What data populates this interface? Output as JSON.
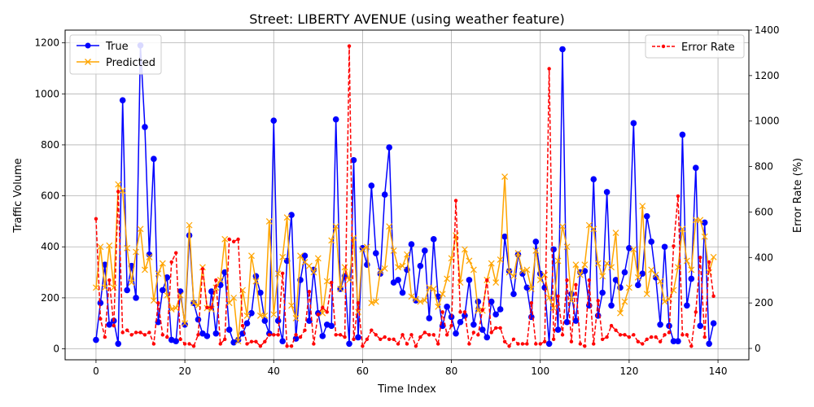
{
  "chart_data": {
    "type": "line",
    "title": "Street: LIBERTY AVENUE (using weather feature)",
    "xlabel": "Time Index",
    "ylabel_left": "Traffic Volume",
    "ylabel_right": "Error Rate (%)",
    "xlim": [
      -6.95,
      146.95
    ],
    "ylim_left": [
      -43,
      1250
    ],
    "ylim_right": [
      -50,
      1400
    ],
    "xticks": [
      0,
      20,
      40,
      60,
      80,
      100,
      120,
      140
    ],
    "yticks_left": [
      0,
      200,
      400,
      600,
      800,
      1000,
      1200
    ],
    "yticks_right": [
      0,
      200,
      400,
      600,
      800,
      1000,
      1200,
      1400
    ],
    "grid": true,
    "legend_left_placement": "upper-left",
    "legend_right_placement": "upper-right",
    "series": [
      {
        "name": "True",
        "axis": "left",
        "color": "#0000ff",
        "marker": "circle",
        "style": "solid",
        "values": [
          35,
          180,
          330,
          95,
          110,
          20,
          975,
          230,
          325,
          200,
          1190,
          870,
          370,
          745,
          105,
          230,
          280,
          35,
          30,
          225,
          95,
          445,
          180,
          115,
          60,
          50,
          225,
          60,
          250,
          300,
          75,
          25,
          35,
          60,
          100,
          140,
          285,
          220,
          110,
          60,
          895,
          110,
          30,
          345,
          525,
          40,
          270,
          365,
          110,
          310,
          140,
          50,
          95,
          90,
          900,
          235,
          285,
          20,
          740,
          45,
          395,
          330,
          640,
          375,
          295,
          605,
          790,
          260,
          270,
          220,
          310,
          410,
          190,
          325,
          385,
          120,
          430,
          205,
          90,
          165,
          125,
          60,
          105,
          130,
          270,
          95,
          185,
          75,
          45,
          185,
          135,
          155,
          440,
          305,
          215,
          370,
          295,
          240,
          125,
          420,
          295,
          240,
          20,
          390,
          75,
          1175,
          105,
          215,
          110,
          300,
          305,
          170,
          665,
          130,
          220,
          615,
          170,
          270,
          240,
          300,
          395,
          885,
          250,
          295,
          520,
          420,
          280,
          95,
          400,
          90,
          30,
          30,
          840,
          170,
          275,
          710,
          90,
          495,
          20,
          100
        ]
      },
      {
        "name": "Predicted",
        "axis": "left",
        "color": "#ffa500",
        "marker": "x",
        "style": "solid",
        "values": [
          240,
          400,
          240,
          405,
          240,
          645,
          620,
          395,
          260,
          380,
          470,
          310,
          360,
          190,
          295,
          335,
          210,
          155,
          160,
          210,
          100,
          485,
          180,
          170,
          320,
          160,
          155,
          240,
          270,
          430,
          180,
          200,
          30,
          230,
          130,
          365,
          265,
          130,
          130,
          500,
          135,
          295,
          360,
          515,
          170,
          120,
          365,
          340,
          325,
          300,
          355,
          140,
          265,
          425,
          480,
          235,
          320,
          270,
          435,
          145,
          390,
          400,
          180,
          185,
          305,
          315,
          480,
          385,
          320,
          325,
          370,
          205,
          195,
          185,
          190,
          240,
          235,
          165,
          215,
          275,
          355,
          445,
          260,
          390,
          345,
          310,
          150,
          150,
          270,
          335,
          260,
          350,
          675,
          300,
          285,
          375,
          305,
          310,
          235,
          385,
          270,
          290,
          200,
          160,
          345,
          480,
          400,
          190,
          330,
          290,
          330,
          485,
          470,
          335,
          285,
          335,
          320,
          455,
          140,
          185,
          240,
          390,
          280,
          560,
          215,
          310,
          290,
          265,
          185,
          195,
          230,
          320,
          470,
          345,
          310,
          505,
          505,
          440,
          300,
          360
        ]
      },
      {
        "name": "Error Rate",
        "axis": "right",
        "color": "#ff0000",
        "marker": "dot",
        "style": "dashed",
        "values": [
          570,
          130,
          50,
          300,
          100,
          690,
          70,
          80,
          60,
          70,
          70,
          60,
          70,
          20,
          200,
          60,
          50,
          380,
          420,
          40,
          20,
          20,
          10,
          60,
          350,
          180,
          180,
          300,
          20,
          40,
          480,
          470,
          480,
          100,
          20,
          30,
          30,
          10,
          30,
          60,
          60,
          60,
          330,
          10,
          10,
          60,
          50,
          80,
          250,
          20,
          150,
          180,
          160,
          290,
          60,
          60,
          50,
          1330,
          40,
          200,
          10,
          40,
          80,
          60,
          40,
          50,
          40,
          40,
          20,
          60,
          20,
          60,
          10,
          50,
          70,
          60,
          60,
          20,
          160,
          60,
          100,
          650,
          160,
          160,
          20,
          70,
          60,
          170,
          300,
          70,
          90,
          90,
          30,
          10,
          40,
          20,
          20,
          20,
          200,
          20,
          20,
          30,
          1230,
          40,
          230,
          60,
          300,
          30,
          280,
          20,
          10,
          300,
          20,
          210,
          40,
          50,
          100,
          80,
          60,
          60,
          50,
          60,
          30,
          20,
          40,
          50,
          50,
          30,
          60,
          70,
          450,
          670,
          60,
          60,
          10,
          160,
          400,
          50,
          380,
          230
        ]
      }
    ]
  }
}
